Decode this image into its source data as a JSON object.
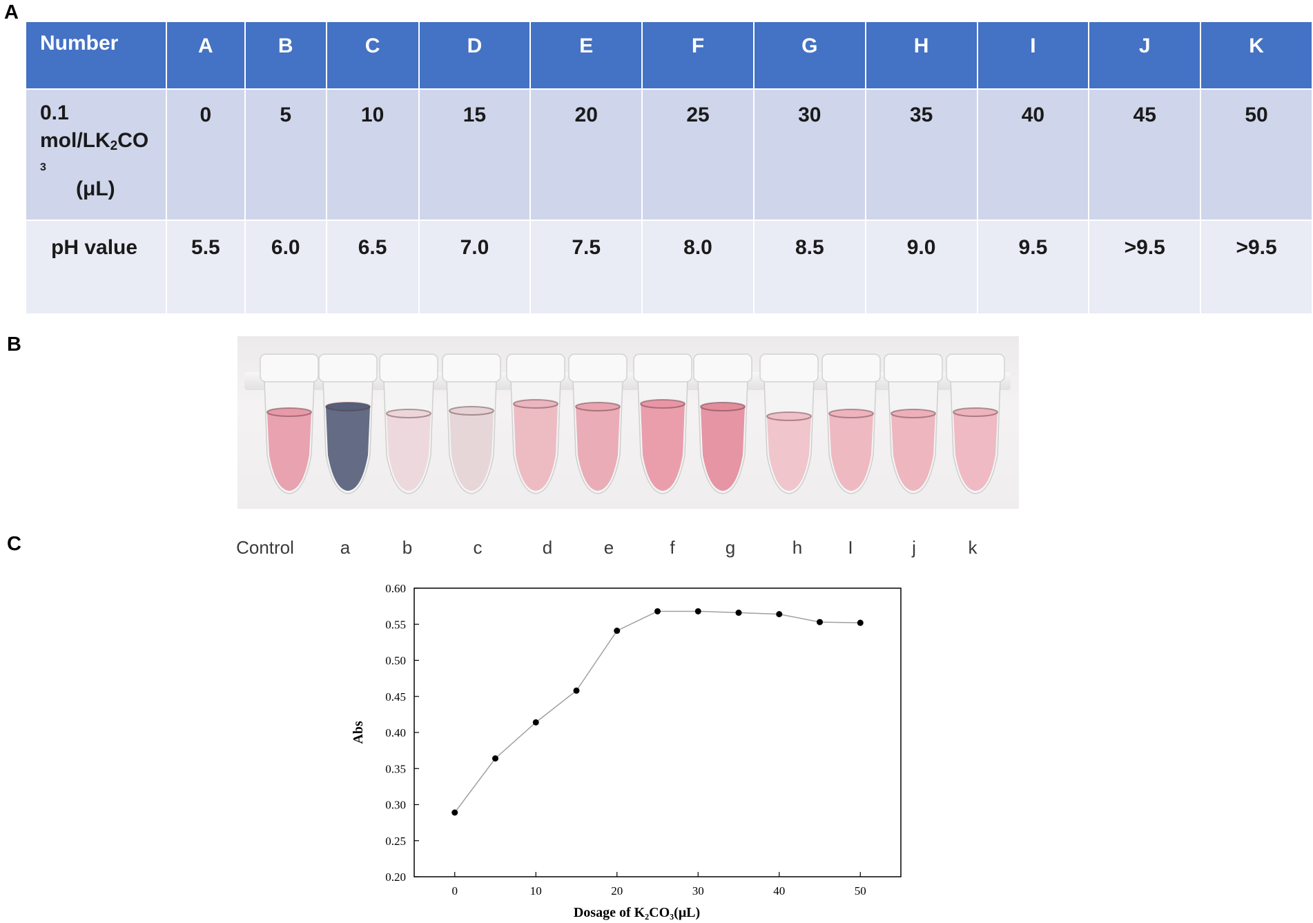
{
  "panels": {
    "a": "A",
    "b": "B",
    "c": "C"
  },
  "table": {
    "header": {
      "label": "Number",
      "values": [
        "A",
        "B",
        "C",
        "D",
        "E",
        "F",
        "G",
        "H",
        "I",
        "J",
        "K"
      ]
    },
    "row_dosage": {
      "label_line1": "0.1",
      "label_line2_pre": "mol/LK",
      "label_sub": "2",
      "label_line2_post": "CO",
      "label_line3": "3",
      "label_unit": "(μL)",
      "values": [
        "0",
        "5",
        "10",
        "15",
        "20",
        "25",
        "30",
        "35",
        "40",
        "45",
        "50"
      ]
    },
    "row_ph": {
      "label": "pH value",
      "values": [
        "5.5",
        "6.0",
        "6.5",
        "7.0",
        "7.5",
        "8.0",
        "8.5",
        "9.0",
        "9.5",
        ">9.5",
        ">9.5"
      ]
    }
  },
  "photo": {
    "tube_labels": [
      "Control",
      "a",
      "b",
      "c",
      "d",
      "e",
      "f",
      "g",
      "h",
      "I",
      "j",
      "k"
    ],
    "tube_colors": [
      "#e79aa8",
      "#56607a",
      "#ecd6da",
      "#e4d2d4",
      "#ecb6be",
      "#e8a5b0",
      "#e896a5",
      "#e38c9c",
      "#efc0c8",
      "#eeb3bd",
      "#edb0ba",
      "#eeb4be"
    ]
  },
  "chart_data": {
    "type": "line",
    "x": [
      0,
      5,
      10,
      15,
      20,
      25,
      30,
      35,
      40,
      45,
      50
    ],
    "series": [
      {
        "values": [
          0.289,
          0.364,
          0.414,
          0.458,
          0.541,
          0.568,
          0.568,
          0.566,
          0.564,
          0.553,
          0.552
        ]
      }
    ],
    "xlabel": "Dosage of K₂CO₃(μL)",
    "ylabel": "Abs",
    "xticks": [
      "0",
      "10",
      "20",
      "30",
      "40",
      "50"
    ],
    "yticks": [
      "0.20",
      "0.25",
      "0.30",
      "0.35",
      "0.40",
      "0.45",
      "0.50",
      "0.55",
      "0.60"
    ],
    "xlim": [
      -5,
      55
    ],
    "ylim": [
      0.2,
      0.6
    ],
    "grid": false,
    "colors": {
      "line": "#a0a0a0",
      "marker": "#000000"
    }
  }
}
